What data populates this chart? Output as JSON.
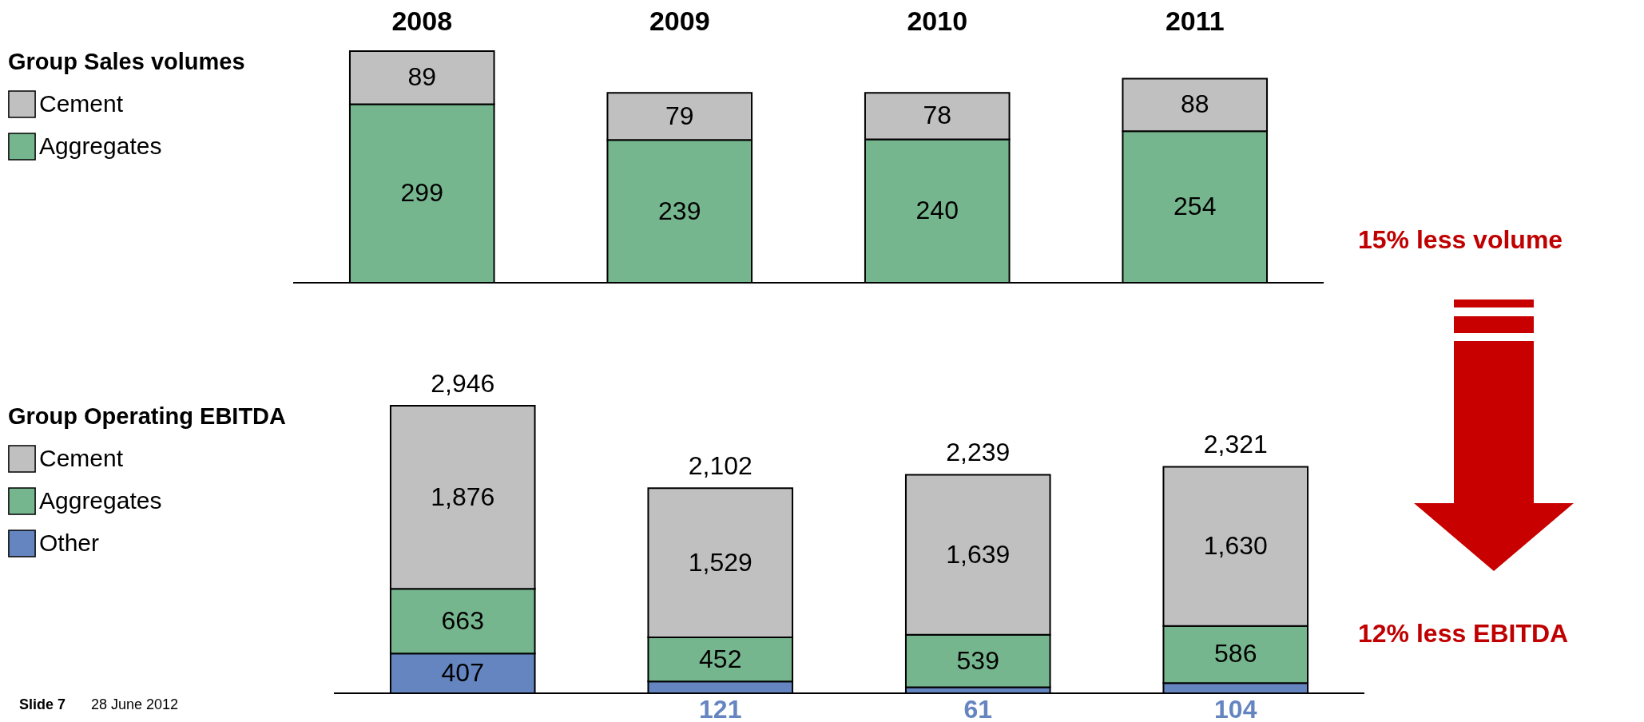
{
  "chart_data": [
    {
      "type": "bar",
      "stacked": true,
      "legend_title": "Group Sales volumes",
      "legend": "left",
      "tick_labels": "x",
      "data_labels": true,
      "categories": [
        "2008",
        "2009",
        "2010",
        "2011"
      ],
      "series": [
        {
          "name": "Aggregates",
          "color": "#76b68f",
          "values": [
            299,
            239,
            240,
            254
          ]
        },
        {
          "name": "Cement",
          "color": "#c0c0c0",
          "values": [
            89,
            79,
            78,
            88
          ]
        }
      ],
      "annotations": [
        "15% less volume"
      ]
    },
    {
      "type": "bar",
      "stacked": true,
      "legend_title": "Group Operating EBITDA",
      "legend": "left",
      "tick_labels": false,
      "categories": [
        "2008",
        "2009",
        "2010",
        "2011"
      ],
      "series": [
        {
          "name": "Other",
          "color": "#6585c1",
          "values": [
            407,
            121,
            61,
            104
          ],
          "value_labels": [
            "407",
            "121",
            "61",
            "104"
          ]
        },
        {
          "name": "Aggregates",
          "color": "#76b68f",
          "values": [
            663,
            452,
            539,
            586
          ],
          "value_labels": [
            "663",
            "452",
            "539",
            "586"
          ]
        },
        {
          "name": "Cement",
          "color": "#c0c0c0",
          "values": [
            1876,
            1529,
            1639,
            1630
          ],
          "value_labels": [
            "1,876",
            "1,529",
            "1,639",
            "1,630"
          ]
        }
      ],
      "totals": [
        "2,946",
        "2,102",
        "2,239",
        "2,321"
      ],
      "annotations": [
        "12% less EBITDA",
        "Slide 7",
        "28 June 2012"
      ]
    }
  ]
}
